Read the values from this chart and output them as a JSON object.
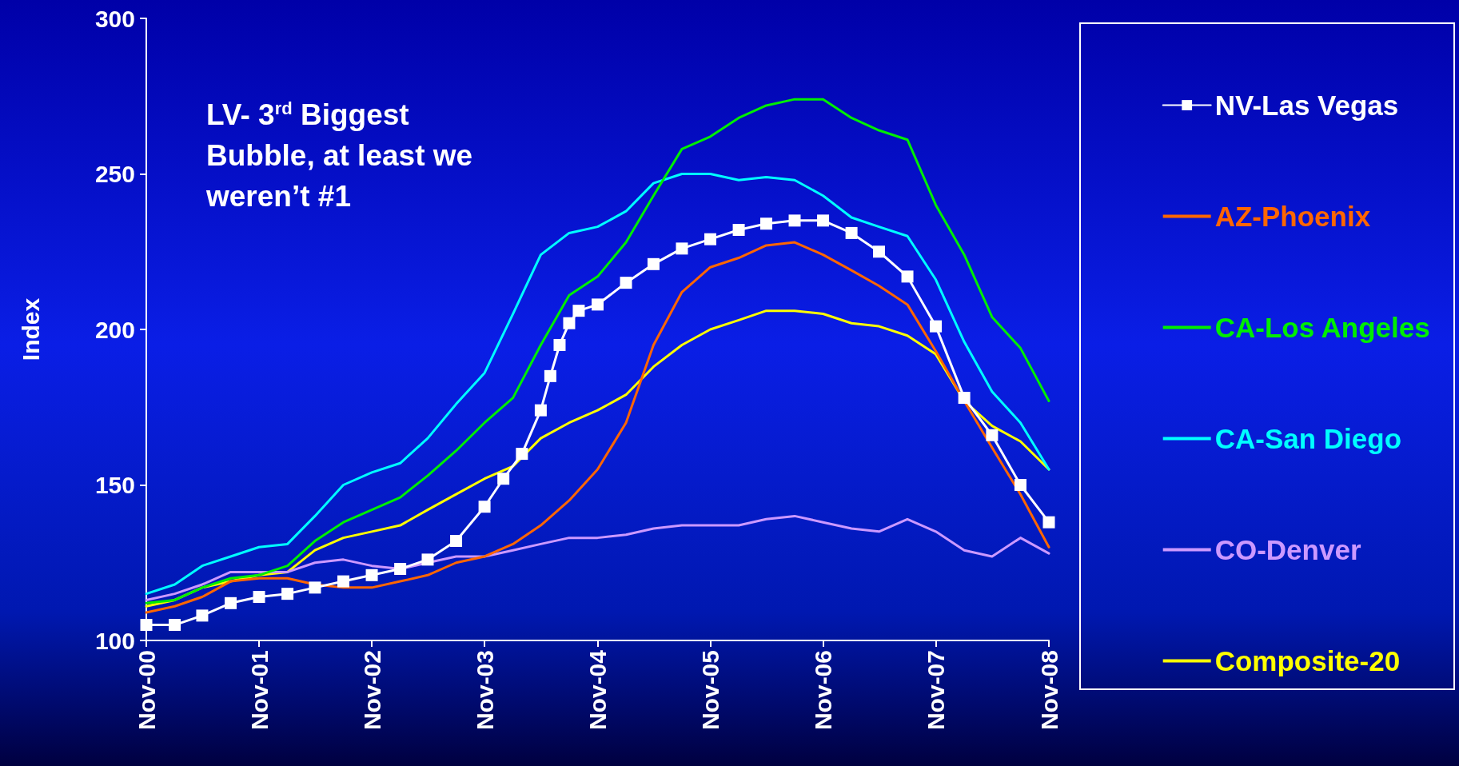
{
  "chart_data": {
    "type": "line",
    "ylabel": "Index",
    "annotations": [
      "LV- 3$^{rd}$ Biggest Bubble, at least we weren’t #1"
    ],
    "x": [
      "2000-11",
      "2001-02",
      "2001-05",
      "2001-08",
      "2001-11",
      "2002-02",
      "2002-05",
      "2002-08",
      "2002-11",
      "2003-02",
      "2003-05",
      "2003-08",
      "2003-11",
      "2004-02",
      "2004-05",
      "2004-08",
      "2004-11",
      "2005-02",
      "2005-05",
      "2005-08",
      "2005-11",
      "2006-02",
      "2006-05",
      "2006-08",
      "2006-11",
      "2007-02",
      "2007-05",
      "2007-08",
      "2007-11",
      "2008-02",
      "2008-05",
      "2008-08",
      "2008-11"
    ],
    "xlim": [
      "2000-11",
      "2008-11"
    ],
    "xticks": [
      {
        "value": "2000-11",
        "label": "Nov-00"
      },
      {
        "value": "2001-11",
        "label": "Nov-01"
      },
      {
        "value": "2002-11",
        "label": "Nov-02"
      },
      {
        "value": "2003-11",
        "label": "Nov-03"
      },
      {
        "value": "2004-11",
        "label": "Nov-04"
      },
      {
        "value": "2005-11",
        "label": "Nov-05"
      },
      {
        "value": "2006-11",
        "label": "Nov-06"
      },
      {
        "value": "2007-11",
        "label": "Nov-07"
      },
      {
        "value": "2008-11",
        "label": "Nov-08"
      }
    ],
    "ylim": [
      100,
      300
    ],
    "yticks": [
      100,
      150,
      200,
      250,
      300
    ],
    "grid": false,
    "legend": "right",
    "line_style": "solid",
    "series": [
      {
        "name": "NV-Las Vegas",
        "color": "#ffffff",
        "marker": "square",
        "x": [
          "2000-11",
          "2001-02",
          "2001-05",
          "2001-08",
          "2001-11",
          "2002-02",
          "2002-05",
          "2002-08",
          "2002-11",
          "2003-02",
          "2003-05",
          "2003-08",
          "2003-11",
          "2004-01",
          "2004-03",
          "2004-05",
          "2004-06",
          "2004-07",
          "2004-08",
          "2004-09",
          "2004-11",
          "2005-02",
          "2005-05",
          "2005-08",
          "2005-11",
          "2006-02",
          "2006-05",
          "2006-08",
          "2006-11",
          "2007-02",
          "2007-05",
          "2007-08",
          "2007-11",
          "2008-02",
          "2008-05",
          "2008-08",
          "2008-11"
        ],
        "values": [
          105,
          105,
          108,
          112,
          114,
          115,
          117,
          119,
          121,
          123,
          126,
          132,
          143,
          152,
          160,
          174,
          185,
          195,
          202,
          206,
          208,
          215,
          221,
          226,
          229,
          232,
          234,
          235,
          235,
          231,
          225,
          217,
          201,
          178,
          166,
          150,
          138
        ]
      },
      {
        "name": "AZ-Phoenix",
        "color": "#ff6600",
        "marker": "none",
        "values": [
          109,
          111,
          114,
          119,
          120,
          120,
          118,
          117,
          117,
          119,
          121,
          125,
          127,
          131,
          137,
          145,
          155,
          170,
          195,
          212,
          220,
          223,
          227,
          228,
          224,
          219,
          214,
          208,
          193,
          177,
          162,
          147,
          130
        ]
      },
      {
        "name": "CA-Los Angeles",
        "color": "#00ee00",
        "marker": "none",
        "values": [
          112,
          113,
          117,
          120,
          121,
          124,
          132,
          138,
          142,
          146,
          153,
          161,
          170,
          178,
          195,
          211,
          217,
          228,
          243,
          258,
          262,
          268,
          272,
          274,
          274,
          268,
          264,
          261,
          240,
          224,
          204,
          194,
          177
        ]
      },
      {
        "name": "CA-San Diego",
        "color": "#00ffff",
        "marker": "none",
        "values": [
          115,
          118,
          124,
          127,
          130,
          131,
          140,
          150,
          154,
          157,
          165,
          176,
          186,
          205,
          224,
          231,
          233,
          238,
          247,
          250,
          250,
          248,
          249,
          248,
          243,
          236,
          233,
          230,
          216,
          196,
          180,
          170,
          155
        ]
      },
      {
        "name": "CO-Denver",
        "color": "#cc99ff",
        "marker": "none",
        "values": [
          113,
          115,
          118,
          122,
          122,
          122,
          125,
          126,
          124,
          123,
          125,
          127,
          127,
          129,
          131,
          133,
          133,
          134,
          136,
          137,
          137,
          137,
          139,
          140,
          138,
          136,
          135,
          139,
          135,
          129,
          127,
          133,
          128
        ]
      },
      {
        "name": "Composite-20",
        "color": "#ffff00",
        "marker": "none",
        "values": [
          111,
          113,
          117,
          119,
          121,
          122,
          129,
          133,
          135,
          137,
          142,
          147,
          152,
          156,
          165,
          170,
          174,
          179,
          188,
          195,
          200,
          203,
          206,
          206,
          205,
          202,
          201,
          198,
          192,
          177,
          169,
          164,
          155
        ]
      }
    ]
  }
}
